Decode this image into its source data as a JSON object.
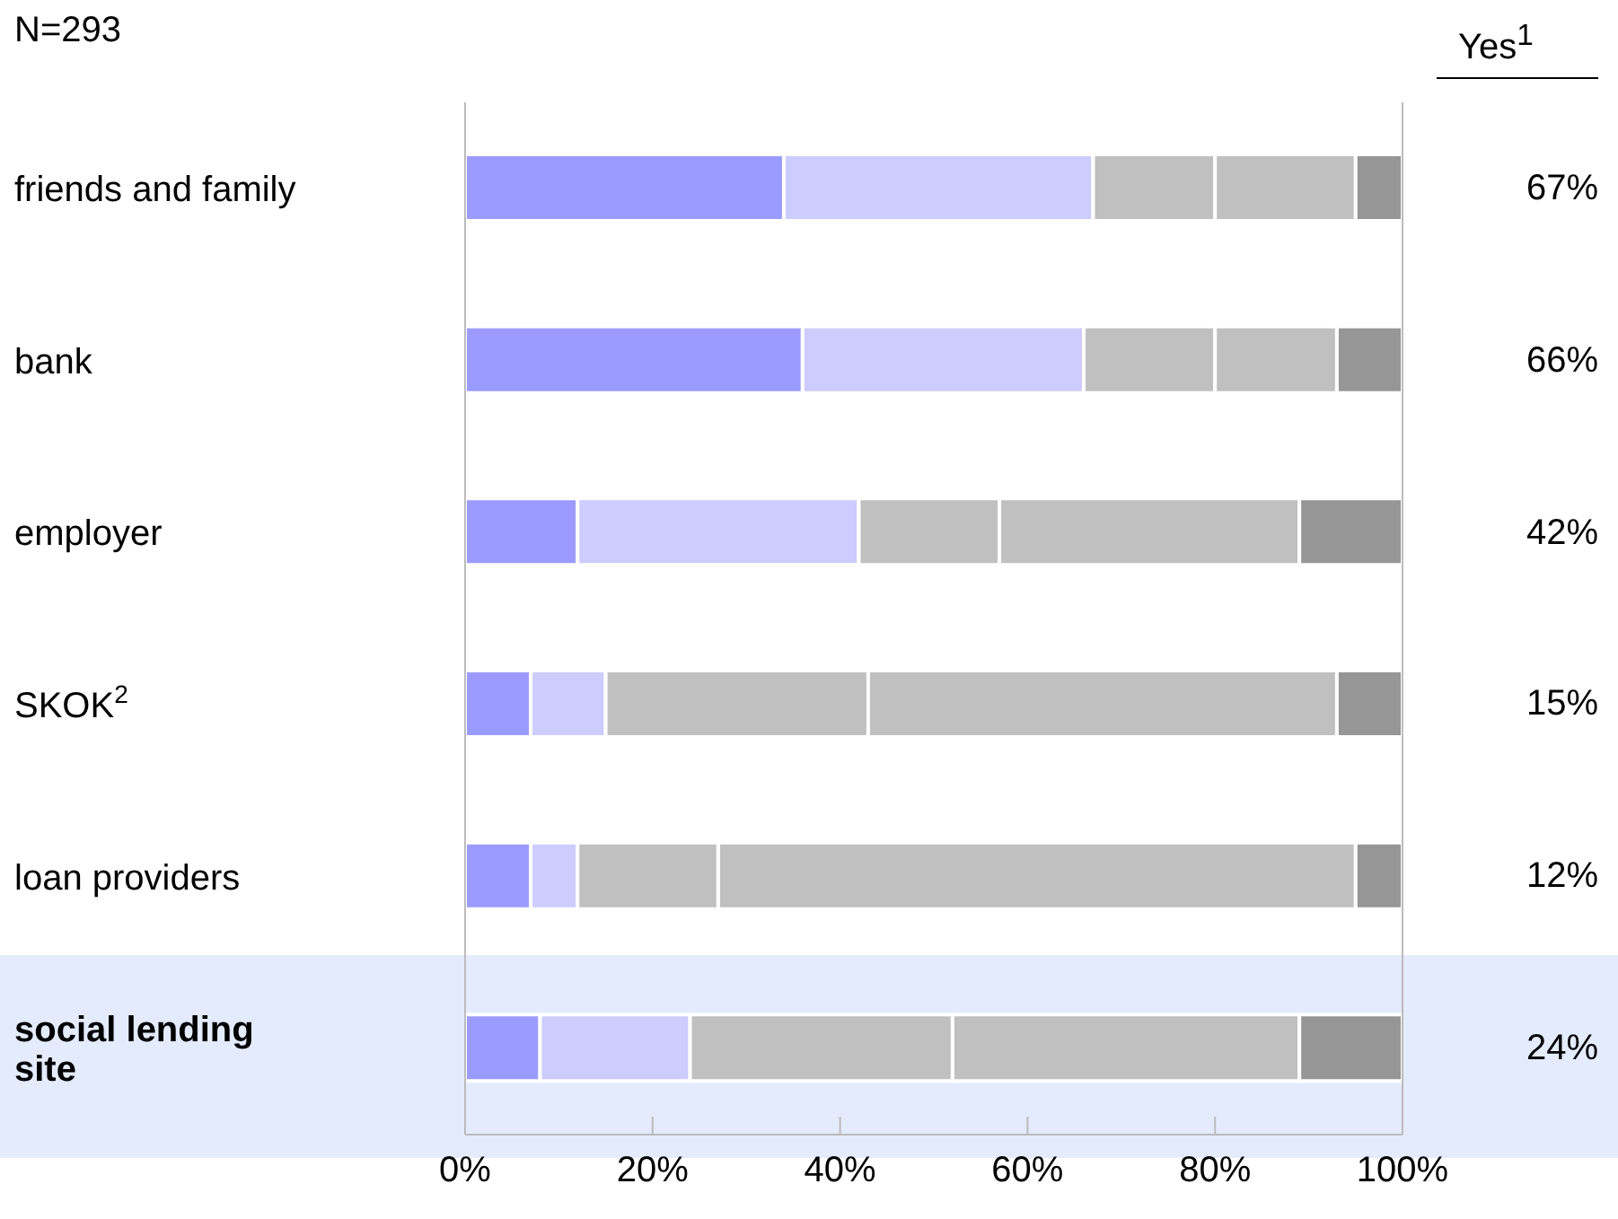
{
  "chart_data": {
    "type": "bar",
    "orientation": "horizontal",
    "stacked": true,
    "subtitle": "N=293",
    "categories": [
      "friends and family",
      "bank",
      "employer",
      "SKOK$^{2}$",
      "loan providers",
      "social lending site"
    ],
    "series": [
      {
        "color": "#9b9bff",
        "values": [
          34,
          36,
          12,
          7,
          7,
          8
        ]
      },
      {
        "color": "#ccccff",
        "values": [
          33,
          30,
          30,
          8,
          5,
          16
        ]
      },
      {
        "color": "#c0c0c0",
        "values": [
          13,
          14,
          15,
          28,
          15,
          28
        ]
      },
      {
        "color": "#c0c0c0",
        "values": [
          15,
          13,
          32,
          50,
          68,
          37
        ]
      },
      {
        "color": "#969696",
        "values": [
          5,
          7,
          11,
          7,
          5,
          11
        ]
      }
    ],
    "xlim": [
      0,
      100
    ],
    "xticks": [
      {
        "value": 0,
        "label": "0%"
      },
      {
        "value": 20,
        "label": "20%"
      },
      {
        "value": 40,
        "label": "40%"
      },
      {
        "value": 60,
        "label": "60%"
      },
      {
        "value": 80,
        "label": "80%"
      },
      {
        "value": 100,
        "label": "100%"
      }
    ],
    "bands": [
      {
        "axis": "y",
        "from": "social lending site",
        "to": "social lending site",
        "color": "#e3ebfd"
      }
    ],
    "annotations": [
      "Yes$^{1}$",
      "67%",
      "66%",
      "42%",
      "15%",
      "12%",
      "24%"
    ]
  }
}
